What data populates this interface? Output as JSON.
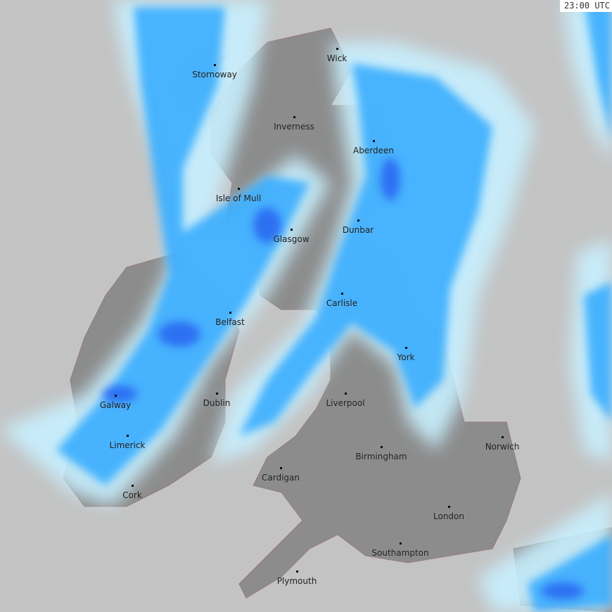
{
  "timestamp": "23:00 UTC",
  "colors": {
    "sea": "#c3c3c3",
    "land": "#8c8c8c",
    "rain_light": "#c8f0ff",
    "rain_mid": "#33aaff",
    "rain_heavy": "#2255ee",
    "coast": "#9a7a7a"
  },
  "cities": [
    {
      "name": "Stornoway"
    },
    {
      "name": "Wick"
    },
    {
      "name": "Inverness"
    },
    {
      "name": "Aberdeen"
    },
    {
      "name": "Isle of Mull"
    },
    {
      "name": "Glasgow"
    },
    {
      "name": "Dunbar"
    },
    {
      "name": "Carlisle"
    },
    {
      "name": "Belfast"
    },
    {
      "name": "York"
    },
    {
      "name": "Galway"
    },
    {
      "name": "Dublin"
    },
    {
      "name": "Liverpool"
    },
    {
      "name": "Limerick"
    },
    {
      "name": "Birmingham"
    },
    {
      "name": "Norwich"
    },
    {
      "name": "Cardigan"
    },
    {
      "name": "Cork"
    },
    {
      "name": "London"
    },
    {
      "name": "Southampton"
    },
    {
      "name": "Plymouth"
    }
  ]
}
